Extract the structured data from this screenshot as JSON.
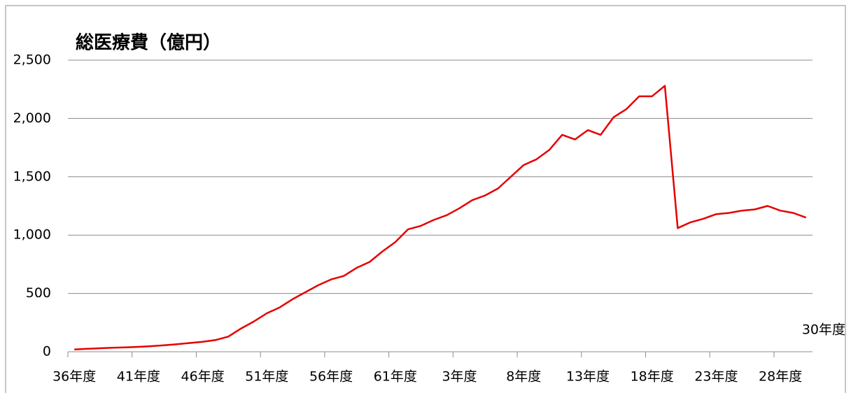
{
  "chart_data": {
    "type": "line",
    "title": "総医療費（億円）",
    "categories": [
      "36年度",
      null,
      null,
      null,
      null,
      "41年度",
      null,
      null,
      null,
      null,
      "46年度",
      null,
      null,
      null,
      null,
      "51年度",
      null,
      null,
      null,
      null,
      "56年度",
      null,
      null,
      null,
      null,
      "61年度",
      null,
      null,
      null,
      null,
      "3年度",
      null,
      null,
      null,
      null,
      "8年度",
      null,
      null,
      null,
      null,
      "13年度",
      null,
      null,
      null,
      null,
      "18年度",
      null,
      null,
      null,
      null,
      "23年度",
      null,
      null,
      null,
      null,
      "28年度",
      null,
      "30年度"
    ],
    "values": [
      20,
      25,
      30,
      35,
      38,
      42,
      48,
      55,
      65,
      75,
      85,
      100,
      130,
      200,
      260,
      330,
      380,
      450,
      510,
      570,
      620,
      650,
      720,
      770,
      860,
      940,
      1050,
      1080,
      1130,
      1170,
      1230,
      1300,
      1340,
      1400,
      1500,
      1600,
      1650,
      1730,
      1860,
      1820,
      1900,
      1860,
      2010,
      2080,
      2190,
      2190,
      2280,
      1060,
      1110,
      1140,
      1180,
      1190,
      1210,
      1220,
      1250,
      1210,
      1190,
      1150
    ],
    "color": "#e60000",
    "ylim": [
      0,
      2500
    ],
    "yticks": [
      0,
      500,
      {
        "value": 1000,
        "label": "1,000"
      },
      {
        "value": 1500,
        "label": "1,500"
      },
      {
        "value": 2000,
        "label": "2,000"
      },
      {
        "value": 2500,
        "label": "2,500"
      }
    ],
    "grid": true
  }
}
